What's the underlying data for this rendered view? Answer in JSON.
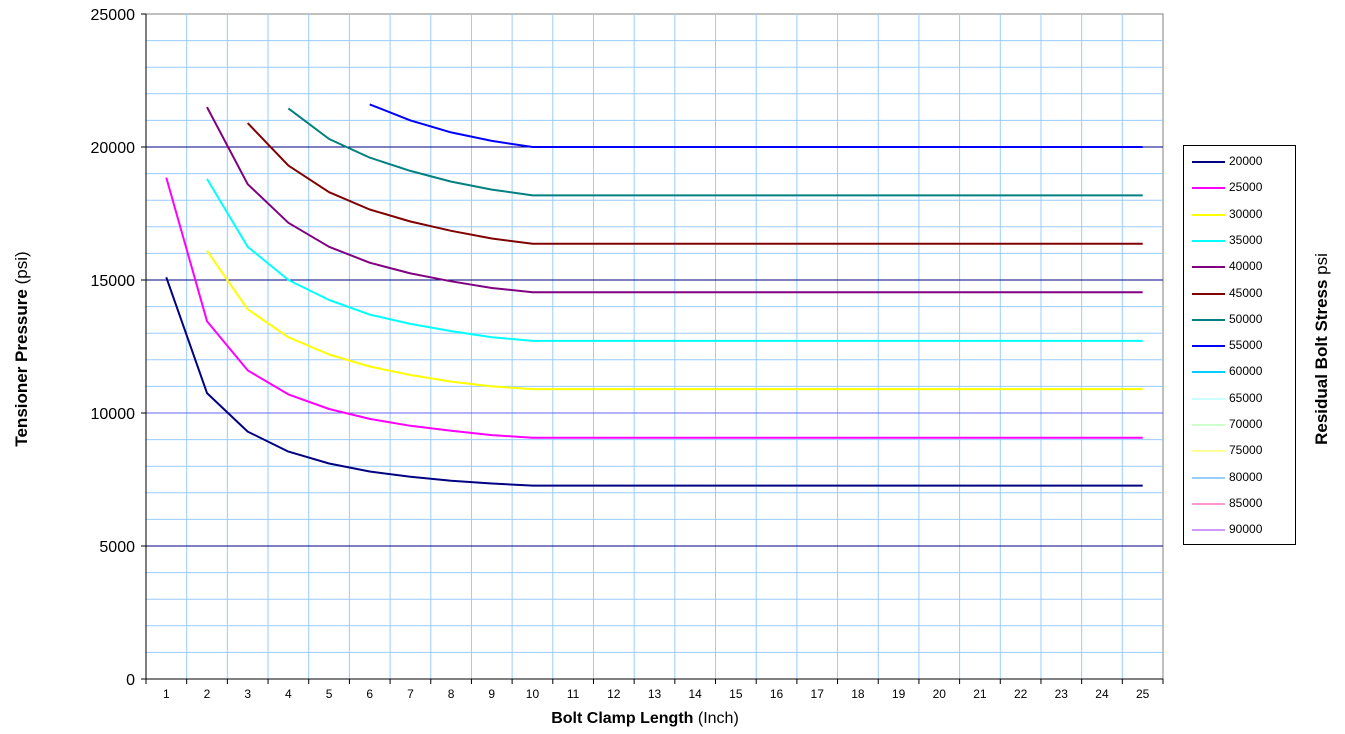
{
  "chart_data": {
    "type": "line",
    "xlabel_bold": "Bolt Clamp Length",
    "xlabel_unit": "(Inch)",
    "ylabel_bold": "Tensioner Pressure",
    "ylabel_unit": "(psi)",
    "legend_title_bold": "Residual Bolt Stress",
    "legend_title_unit": "psi",
    "legend_position": "right",
    "grid": true,
    "xlim": [
      0.5,
      25.5
    ],
    "ylim": [
      0,
      25000
    ],
    "x_ticks": [
      "1",
      "2",
      "3",
      "4",
      "5",
      "6",
      "7",
      "8",
      "9",
      "10",
      "11",
      "12",
      "13",
      "14",
      "15",
      "16",
      "17",
      "18",
      "19",
      "20",
      "21",
      "22",
      "23",
      "24",
      "25"
    ],
    "y_ticks": [
      "0",
      "5000",
      "10000",
      "15000",
      "20000",
      "25000"
    ],
    "series": [
      {
        "name": "20000",
        "color": "#000080",
        "x": [
          1,
          2,
          3,
          4,
          5,
          6,
          7,
          8,
          9,
          10,
          11,
          12,
          13,
          14,
          15,
          16,
          17,
          18,
          19,
          20,
          21,
          22,
          23,
          24,
          25
        ],
        "y": [
          15100,
          10750,
          9300,
          8550,
          8100,
          7800,
          7600,
          7450,
          7350,
          7270,
          7270,
          7270,
          7270,
          7270,
          7270,
          7270,
          7270,
          7270,
          7270,
          7270,
          7270,
          7270,
          7270,
          7270,
          7270
        ]
      },
      {
        "name": "25000",
        "color": "#ff00ff",
        "x": [
          1,
          2,
          3,
          4,
          5,
          6,
          7,
          8,
          9,
          10,
          11,
          12,
          13,
          14,
          15,
          16,
          17,
          18,
          19,
          20,
          21,
          22,
          23,
          24,
          25
        ],
        "y": [
          18850,
          13450,
          11600,
          10700,
          10150,
          9780,
          9520,
          9330,
          9170,
          9070,
          9070,
          9070,
          9070,
          9070,
          9070,
          9070,
          9070,
          9070,
          9070,
          9070,
          9070,
          9070,
          9070,
          9070,
          9070
        ]
      },
      {
        "name": "30000",
        "color": "#ffff00",
        "x": [
          2,
          3,
          4,
          5,
          6,
          7,
          8,
          9,
          10,
          11,
          12,
          13,
          14,
          15,
          16,
          17,
          18,
          19,
          20,
          21,
          22,
          23,
          24,
          25
        ],
        "y": [
          16100,
          13900,
          12850,
          12200,
          11750,
          11430,
          11180,
          11000,
          10900,
          10900,
          10900,
          10900,
          10900,
          10900,
          10900,
          10900,
          10900,
          10900,
          10900,
          10900,
          10900,
          10900,
          10900,
          10900
        ]
      },
      {
        "name": "35000",
        "color": "#00ffff",
        "x": [
          2,
          3,
          4,
          5,
          6,
          7,
          8,
          9,
          10,
          11,
          12,
          13,
          14,
          15,
          16,
          17,
          18,
          19,
          20,
          21,
          22,
          23,
          24,
          25
        ],
        "y": [
          18800,
          16250,
          15000,
          14250,
          13700,
          13350,
          13080,
          12850,
          12710,
          12710,
          12710,
          12710,
          12710,
          12710,
          12710,
          12710,
          12710,
          12710,
          12710,
          12710,
          12710,
          12710,
          12710,
          12710
        ]
      },
      {
        "name": "40000",
        "color": "#800080",
        "x": [
          2,
          3,
          4,
          5,
          6,
          7,
          8,
          9,
          10,
          11,
          12,
          13,
          14,
          15,
          16,
          17,
          18,
          19,
          20,
          21,
          22,
          23,
          24,
          25
        ],
        "y": [
          21500,
          18600,
          17150,
          16250,
          15650,
          15250,
          14950,
          14700,
          14540,
          14540,
          14540,
          14540,
          14540,
          14540,
          14540,
          14540,
          14540,
          14540,
          14540,
          14540,
          14540,
          14540,
          14540,
          14540
        ]
      },
      {
        "name": "45000",
        "color": "#800000",
        "x": [
          3,
          4,
          5,
          6,
          7,
          8,
          9,
          10,
          11,
          12,
          13,
          14,
          15,
          16,
          17,
          18,
          19,
          20,
          21,
          22,
          23,
          24,
          25
        ],
        "y": [
          20900,
          19300,
          18300,
          17650,
          17200,
          16850,
          16560,
          16360,
          16360,
          16360,
          16360,
          16360,
          16360,
          16360,
          16360,
          16360,
          16360,
          16360,
          16360,
          16360,
          16360,
          16360,
          16360
        ]
      },
      {
        "name": "50000",
        "color": "#008080",
        "x": [
          4,
          5,
          6,
          7,
          8,
          9,
          10,
          11,
          12,
          13,
          14,
          15,
          16,
          17,
          18,
          19,
          20,
          21,
          22,
          23,
          24,
          25
        ],
        "y": [
          21450,
          20300,
          19600,
          19100,
          18700,
          18400,
          18180,
          18180,
          18180,
          18180,
          18180,
          18180,
          18180,
          18180,
          18180,
          18180,
          18180,
          18180,
          18180,
          18180,
          18180,
          18180
        ]
      },
      {
        "name": "55000",
        "color": "#0000ff",
        "x": [
          6,
          7,
          8,
          9,
          10,
          11,
          12,
          13,
          14,
          15,
          16,
          17,
          18,
          19,
          20,
          21,
          22,
          23,
          24,
          25
        ],
        "y": [
          21600,
          21000,
          20550,
          20230,
          20000,
          20000,
          20000,
          20000,
          20000,
          20000,
          20000,
          20000,
          20000,
          20000,
          20000,
          20000,
          20000,
          20000,
          20000,
          20000
        ]
      },
      {
        "name": "60000",
        "color": "#00ccff",
        "x": [],
        "y": []
      },
      {
        "name": "65000",
        "color": "#ccffff",
        "x": [],
        "y": []
      },
      {
        "name": "70000",
        "color": "#ccffcc",
        "x": [],
        "y": []
      },
      {
        "name": "75000",
        "color": "#ffff99",
        "x": [],
        "y": []
      },
      {
        "name": "80000",
        "color": "#99ccff",
        "x": [],
        "y": []
      },
      {
        "name": "85000",
        "color": "#ff99cc",
        "x": [],
        "y": []
      },
      {
        "name": "90000",
        "color": "#cc99ff",
        "x": [],
        "y": []
      }
    ]
  }
}
